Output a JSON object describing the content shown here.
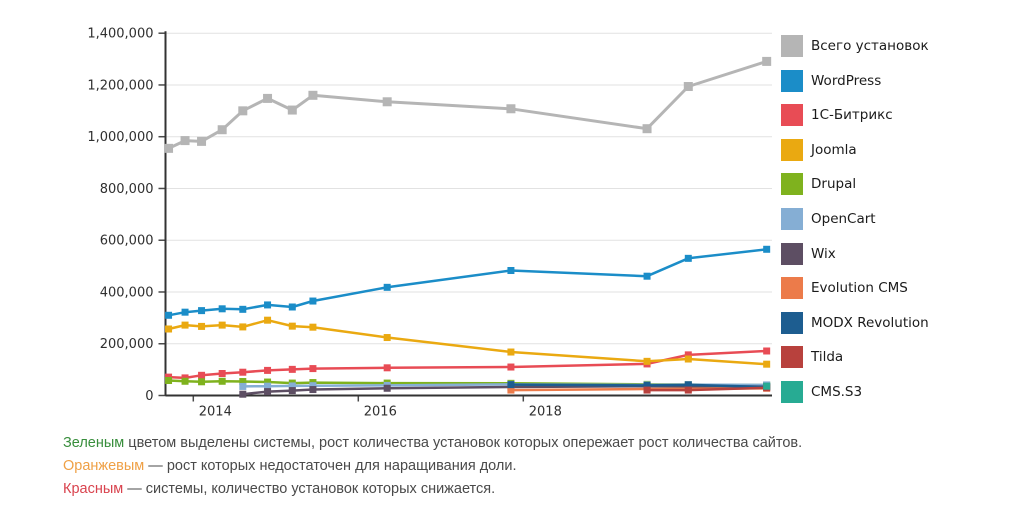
{
  "chart_data": {
    "type": "line",
    "title": "",
    "xlabel": "",
    "ylabel": "",
    "x_unit": "year",
    "x": [
      2013.7,
      2013.9,
      2014.1,
      2014.35,
      2014.6,
      2014.9,
      2015.2,
      2015.45,
      2016.35,
      2017.85,
      2019.5,
      2020.0,
      2020.95
    ],
    "xlim": [
      2013.65,
      2021.0
    ],
    "ylim": [
      0,
      1400000
    ],
    "grid": "horizontal",
    "legend_position": "right",
    "marker": "square",
    "series": [
      {
        "name": "Всего установок",
        "color": "#b5b5b5",
        "values": [
          955000,
          985000,
          982000,
          1027000,
          1100000,
          1148000,
          1103000,
          1160000,
          1135000,
          1108000,
          1031000,
          1194000,
          1291000
        ]
      },
      {
        "name": "WordPress",
        "color": "#1b8dc8",
        "values": [
          310000,
          322000,
          328000,
          335000,
          333000,
          350000,
          342000,
          365000,
          418000,
          483000,
          461000,
          530000,
          565000
        ]
      },
      {
        "name": "1С-Битрикс",
        "color": "#e84c55",
        "values": [
          71000,
          68000,
          78000,
          85000,
          90000,
          97000,
          101000,
          104000,
          107000,
          110000,
          122000,
          157000,
          172000
        ]
      },
      {
        "name": "Joomla",
        "color": "#eaa911",
        "values": [
          257000,
          272000,
          267000,
          272000,
          265000,
          291000,
          268000,
          264000,
          224000,
          168000,
          132000,
          141000,
          121000
        ]
      },
      {
        "name": "Drupal",
        "color": "#7fb21e",
        "values": [
          58000,
          55000,
          53000,
          55000,
          54000,
          52000,
          48000,
          50000,
          48000,
          47000,
          43000,
          42000,
          40000
        ]
      },
      {
        "name": "OpenCart",
        "color": "#85aed4",
        "values": [
          null,
          null,
          null,
          null,
          35000,
          36000,
          37000,
          38000,
          39000,
          43000,
          41000,
          42000,
          41000
        ]
      },
      {
        "name": "Wix",
        "color": "#5d4e63",
        "values": [
          null,
          null,
          null,
          null,
          5000,
          15000,
          19000,
          23000,
          28000,
          33000,
          36000,
          35000,
          34000
        ]
      },
      {
        "name": "Evolution CMS",
        "color": "#ec7b4a",
        "values": [
          null,
          null,
          null,
          null,
          null,
          null,
          null,
          null,
          null,
          21000,
          25000,
          26000,
          28000
        ]
      },
      {
        "name": "MODX Revolution",
        "color": "#1d5d90",
        "values": [
          null,
          null,
          null,
          null,
          null,
          null,
          null,
          null,
          null,
          42000,
          39000,
          41000,
          33000
        ]
      },
      {
        "name": "Tilda",
        "color": "#b8413d",
        "values": [
          null,
          null,
          null,
          null,
          null,
          null,
          null,
          null,
          null,
          null,
          21000,
          21000,
          30000
        ]
      },
      {
        "name": "CMS.S3",
        "color": "#27ab93",
        "values": [
          null,
          null,
          null,
          null,
          null,
          null,
          null,
          null,
          null,
          null,
          null,
          null,
          36000
        ]
      }
    ]
  },
  "y_axis": {
    "labels": [
      "1,400,000",
      "1,200,000",
      "1,000,000",
      "800,000",
      "600,000",
      "400,000",
      "200,000",
      "0"
    ],
    "values": [
      1400000,
      1200000,
      1000000,
      800000,
      600000,
      400000,
      200000,
      0
    ]
  },
  "x_axis": {
    "labels": [
      "2014",
      "2016",
      "2018"
    ],
    "values": [
      2014,
      2016,
      2018
    ]
  },
  "legend": {
    "items": [
      "Всего установок",
      "WordPress",
      "1С-Битрикс",
      "Joomla",
      "Drupal",
      "OpenCart",
      "Wix",
      "Evolution CMS",
      "MODX Revolution",
      "Tilda",
      "CMS.S3"
    ]
  },
  "footnotes": [
    {
      "term": "Зеленым",
      "term_color": "#388e3c",
      "text": " цветом выделены системы, рост количества установок которых опережает рост количества сайтов."
    },
    {
      "term": "Оранжевым",
      "term_color": "#efa045",
      "text": " — рост которых недостаточен для наращивания доли."
    },
    {
      "term": "Красным",
      "term_color": "#d9434e",
      "text": " — системы, количество установок которых снижается."
    }
  ]
}
